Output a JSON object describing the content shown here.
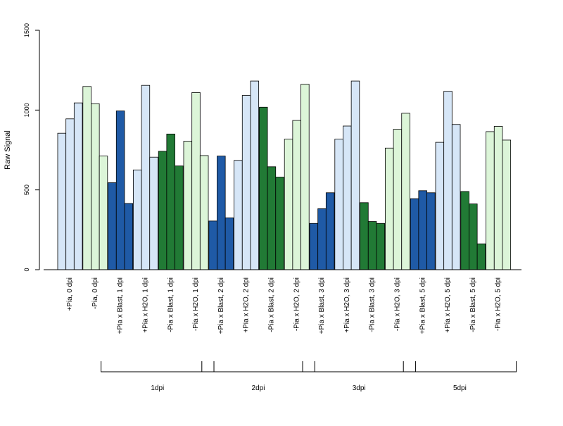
{
  "chart_data": {
    "type": "bar",
    "ylabel": "Raw Signal",
    "ylim": [
      0,
      1500
    ],
    "yticks": [
      0,
      500,
      1000,
      1500
    ],
    "grid": false,
    "colors": {
      "light_blue": "#d6e6f7",
      "dark_blue": "#1f5aa6",
      "light_green": "#dcf5d8",
      "dark_green": "#217a35"
    },
    "categories": [
      {
        "label": "+Pia, 0 dpi",
        "color": "light_blue",
        "values": [
          855,
          945,
          1045
        ]
      },
      {
        "label": "-Pia, 0 dpi",
        "color": "light_green",
        "values": [
          1148,
          1040,
          712
        ]
      },
      {
        "label": "+Pia x Blast, 1 dpi",
        "color": "dark_blue",
        "values": [
          545,
          995,
          415
        ]
      },
      {
        "label": "+Pia x H2O, 1 dpi",
        "color": "light_blue",
        "values": [
          625,
          1155,
          705
        ]
      },
      {
        "label": "-Pia x Blast, 1 dpi",
        "color": "dark_green",
        "values": [
          742,
          850,
          650
        ]
      },
      {
        "label": "-Pia x H2O, 1 dpi",
        "color": "light_green",
        "values": [
          805,
          1110,
          715
        ]
      },
      {
        "label": "+Pia x Blast, 2 dpi",
        "color": "dark_blue",
        "values": [
          305,
          712,
          325
        ]
      },
      {
        "label": "+Pia x H2O, 2 dpi",
        "color": "light_blue",
        "values": [
          685,
          1092,
          1182
        ]
      },
      {
        "label": "-Pia x Blast, 2 dpi",
        "color": "dark_green",
        "values": [
          1018,
          645,
          580
        ]
      },
      {
        "label": "-Pia x H2O, 2 dpi",
        "color": "light_green",
        "values": [
          818,
          935,
          1162
        ]
      },
      {
        "label": "+Pia x Blast, 3 dpi",
        "color": "dark_blue",
        "values": [
          290,
          382,
          482
        ]
      },
      {
        "label": "+Pia x H2O, 3 dpi",
        "color": "light_blue",
        "values": [
          818,
          900,
          1182
        ]
      },
      {
        "label": "-Pia x Blast, 3 dpi",
        "color": "dark_green",
        "values": [
          420,
          302,
          290
        ]
      },
      {
        "label": "-Pia x H2O, 3 dpi",
        "color": "light_green",
        "values": [
          762,
          880,
          980
        ]
      },
      {
        "label": "+Pia x Blast, 5 dpi",
        "color": "dark_blue",
        "values": [
          445,
          495,
          482
        ]
      },
      {
        "label": "+Pia x H2O, 5 dpi",
        "color": "light_blue",
        "values": [
          798,
          1118,
          910
        ]
      },
      {
        "label": "-Pia x Blast, 5 dpi",
        "color": "dark_green",
        "values": [
          490,
          412,
          162
        ]
      },
      {
        "label": "-Pia x H2O, 5 dpi",
        "color": "light_green",
        "values": [
          865,
          898,
          812
        ]
      }
    ],
    "groups": [
      {
        "label": "1dpi",
        "from": 2,
        "to": 5
      },
      {
        "label": "2dpi",
        "from": 6,
        "to": 9
      },
      {
        "label": "3dpi",
        "from": 10,
        "to": 13
      },
      {
        "label": "5dpi",
        "from": 14,
        "to": 17
      }
    ]
  }
}
